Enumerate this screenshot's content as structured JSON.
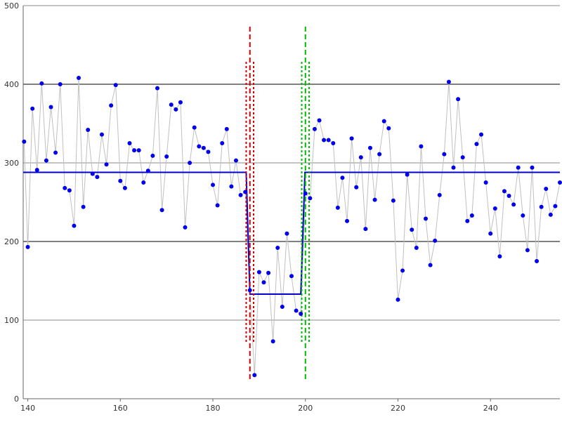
{
  "chart_data": {
    "type": "scatter",
    "xlim": [
      139,
      255
    ],
    "ylim": [
      0,
      500
    ],
    "x_ticks": [
      140,
      160,
      180,
      200,
      220,
      240
    ],
    "y_ticks": [
      0,
      100,
      200,
      300,
      400,
      500
    ],
    "grid": "horizontal",
    "colors": {
      "points": "#0000ee",
      "connector": "#c0c0c0",
      "fit": "#0000cc",
      "change_start": "#dd0000",
      "change_end": "#00bb00",
      "grid_major": "#000000",
      "grid_minor": "#888888"
    },
    "series": [
      {
        "values": [
          [
            139.2,
            327
          ],
          [
            140,
            193
          ],
          [
            141,
            369
          ],
          [
            142,
            291
          ],
          [
            143,
            401
          ],
          [
            144,
            303
          ],
          [
            145,
            371
          ],
          [
            146,
            313
          ],
          [
            147,
            400
          ],
          [
            148,
            268
          ],
          [
            149,
            265
          ],
          [
            150,
            220
          ],
          [
            151,
            408
          ],
          [
            152,
            244
          ],
          [
            153,
            342
          ],
          [
            154,
            286
          ],
          [
            155,
            282
          ],
          [
            156,
            336
          ],
          [
            157,
            298
          ],
          [
            158,
            373
          ],
          [
            159,
            399
          ],
          [
            160,
            277
          ],
          [
            161,
            268
          ],
          [
            162,
            325
          ],
          [
            163,
            316
          ],
          [
            164,
            316
          ],
          [
            165,
            275
          ],
          [
            166,
            290
          ],
          [
            167,
            309
          ],
          [
            168,
            395
          ],
          [
            169,
            240
          ],
          [
            170,
            308
          ],
          [
            171,
            374
          ],
          [
            172,
            368
          ],
          [
            173,
            377
          ],
          [
            174,
            218
          ],
          [
            175,
            300
          ],
          [
            176,
            345
          ],
          [
            177,
            321
          ],
          [
            178,
            319
          ],
          [
            179,
            314
          ],
          [
            180,
            272
          ],
          [
            181,
            246
          ],
          [
            182,
            325
          ],
          [
            183,
            343
          ],
          [
            184,
            270
          ],
          [
            185,
            303
          ],
          [
            186,
            259
          ],
          [
            187,
            263
          ],
          [
            188,
            138
          ],
          [
            189,
            30
          ],
          [
            190,
            161
          ],
          [
            191,
            148
          ],
          [
            192,
            160
          ],
          [
            193,
            73
          ],
          [
            194,
            192
          ],
          [
            195,
            117
          ],
          [
            196,
            210
          ],
          [
            197,
            156
          ],
          [
            198,
            112
          ],
          [
            199,
            108
          ],
          [
            200,
            261
          ],
          [
            201,
            255
          ],
          [
            202,
            343
          ],
          [
            203,
            354
          ],
          [
            204,
            329
          ],
          [
            205,
            329
          ],
          [
            206,
            325
          ],
          [
            207,
            243
          ],
          [
            208,
            281
          ],
          [
            209,
            226
          ],
          [
            210,
            331
          ],
          [
            211,
            269
          ],
          [
            212,
            307
          ],
          [
            213,
            216
          ],
          [
            214,
            319
          ],
          [
            215,
            253
          ],
          [
            216,
            311
          ],
          [
            217,
            353
          ],
          [
            218,
            344
          ],
          [
            219,
            252
          ],
          [
            220,
            126
          ],
          [
            221,
            163
          ],
          [
            222,
            285
          ],
          [
            223,
            215
          ],
          [
            224,
            192
          ],
          [
            225,
            321
          ],
          [
            226,
            229
          ],
          [
            227,
            170
          ],
          [
            228,
            201
          ],
          [
            229,
            259
          ],
          [
            230,
            311
          ],
          [
            231,
            403
          ],
          [
            232,
            294
          ],
          [
            233,
            381
          ],
          [
            234,
            307
          ],
          [
            235,
            226
          ],
          [
            236,
            233
          ],
          [
            237,
            324
          ],
          [
            238,
            336
          ],
          [
            239,
            275
          ],
          [
            240,
            210
          ],
          [
            241,
            242
          ],
          [
            242,
            181
          ],
          [
            243,
            264
          ],
          [
            244,
            258
          ],
          [
            245,
            247
          ],
          [
            246,
            294
          ],
          [
            247,
            233
          ],
          [
            248,
            189
          ],
          [
            249,
            294
          ],
          [
            250,
            175
          ],
          [
            251,
            244
          ],
          [
            252,
            267
          ],
          [
            253,
            234
          ],
          [
            254,
            245
          ],
          [
            255,
            275
          ]
        ]
      },
      {
        "values": [
          [
            139,
            288
          ],
          [
            187.2,
            288
          ],
          [
            188,
            133
          ],
          [
            199,
            133
          ],
          [
            199.9,
            288
          ],
          [
            255,
            288
          ]
        ]
      }
    ],
    "change_points": [
      {
        "center": 188,
        "band": [
          187.2,
          188.8
        ],
        "color": "#dd0000"
      },
      {
        "center": 200,
        "band": [
          199.2,
          200.8
        ],
        "color": "#00bb00"
      }
    ]
  }
}
